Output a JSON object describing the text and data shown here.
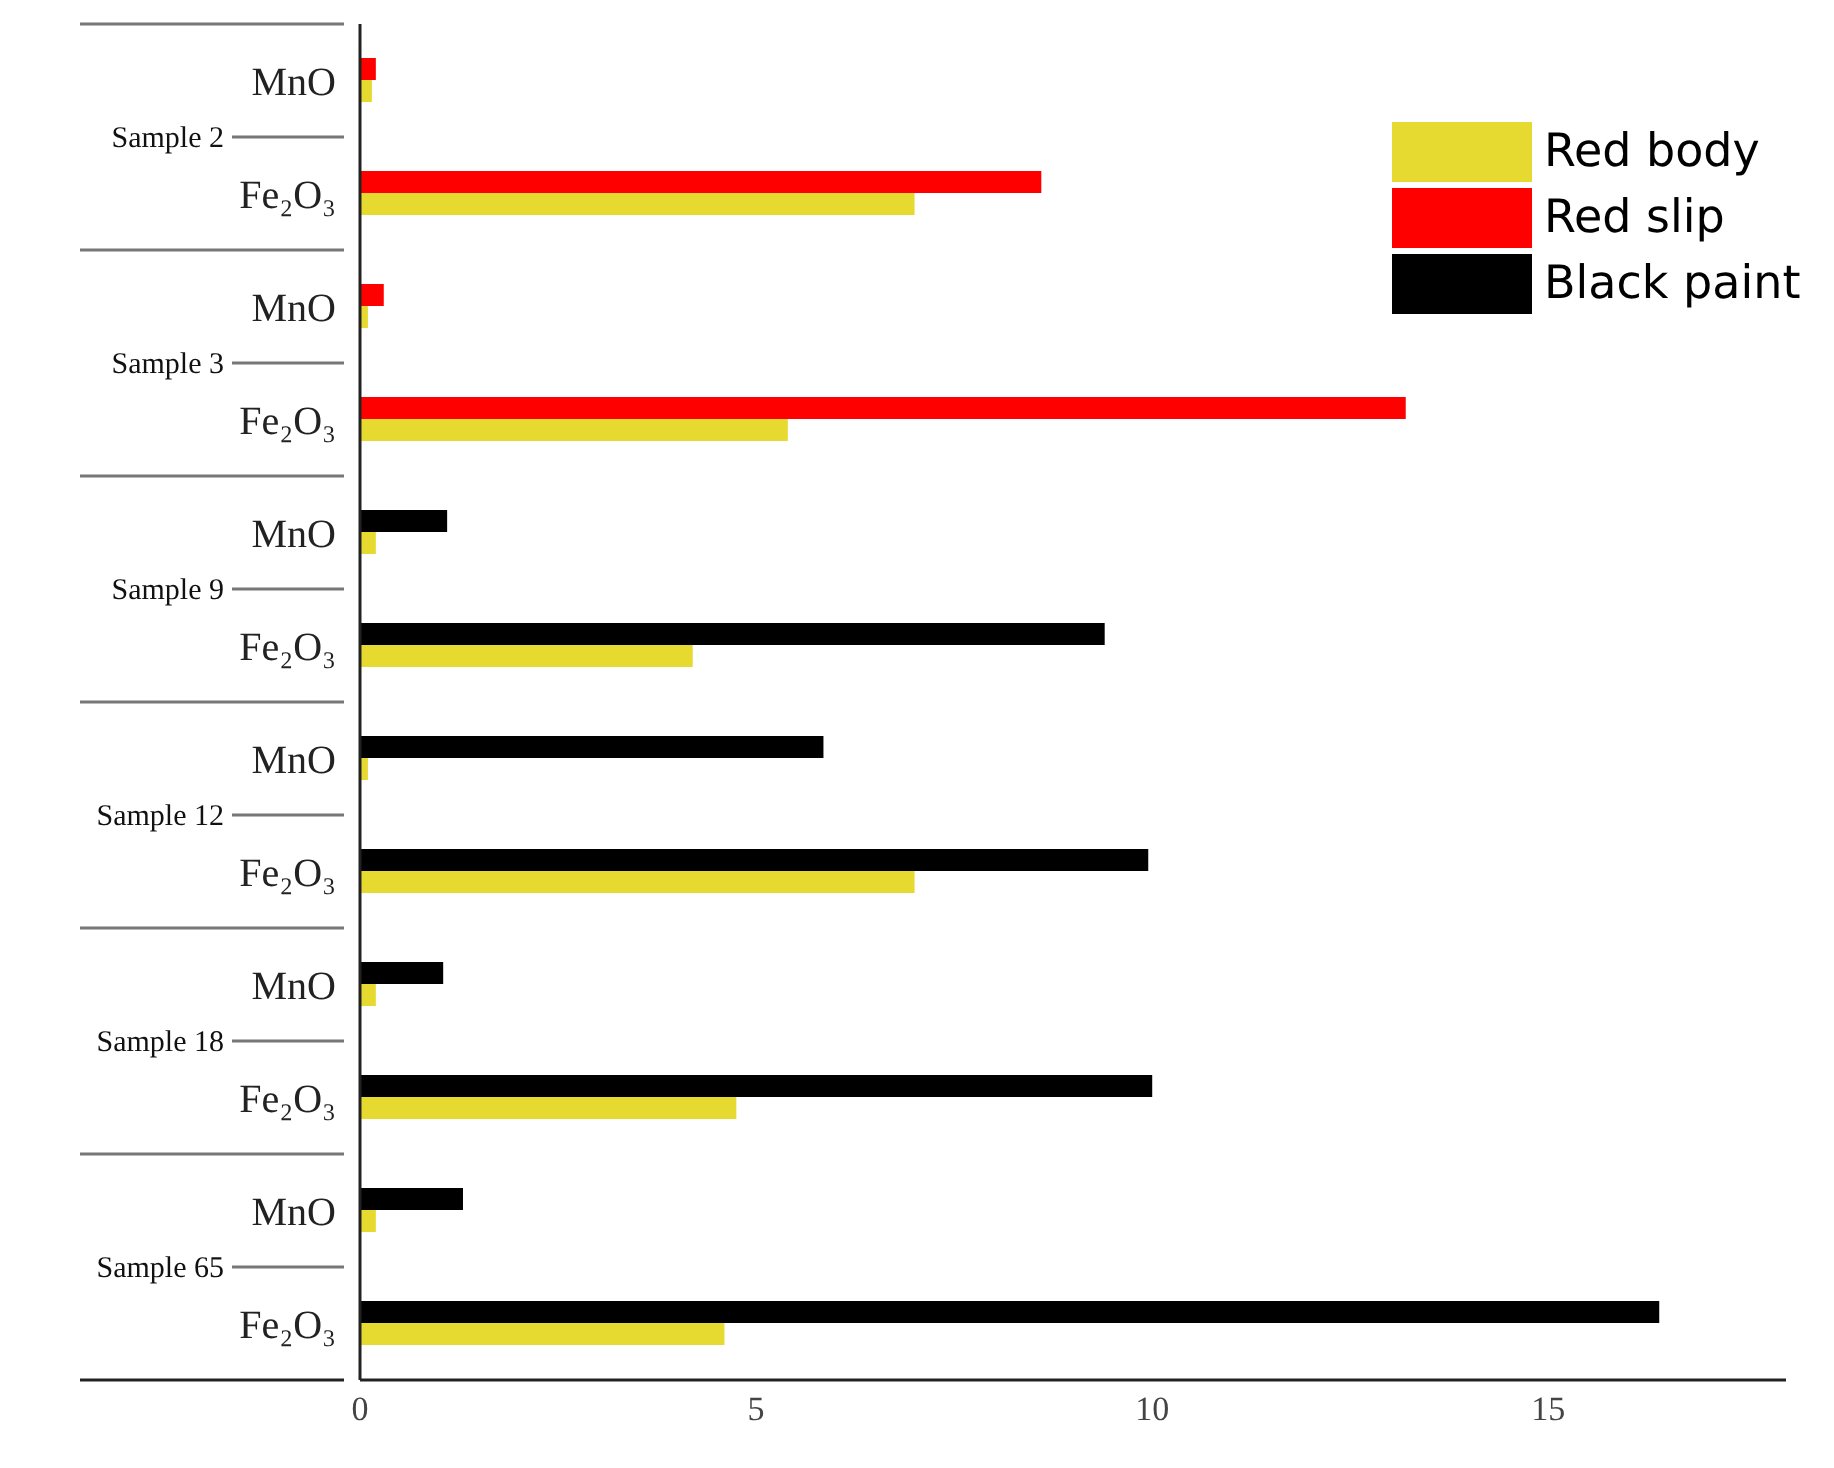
{
  "chart_data": {
    "type": "bar",
    "orientation": "horizontal",
    "categories": [
      "MnO",
      "Fe₂O₃",
      "MnO",
      "Fe₂O₃",
      "MnO",
      "Fe₂O₃",
      "MnO",
      "Fe₂O₃",
      "MnO",
      "Fe₂O₃",
      "MnO",
      "Fe₂O₃"
    ],
    "annotations": [
      "Sample 2",
      "Sample 3",
      "Sample 9",
      "Sample 12",
      "Sample 18",
      "Sample 65"
    ],
    "series": [
      {
        "name": "Red body",
        "color": "#e6d930",
        "values": [
          0.15,
          7.0,
          0.1,
          5.4,
          0.2,
          4.2,
          0.1,
          7.0,
          0.2,
          4.75,
          0.2,
          4.6
        ]
      },
      {
        "name": "Red slip",
        "color": "#ff0000",
        "values": [
          0.2,
          8.6,
          0.3,
          13.2,
          null,
          null,
          null,
          null,
          null,
          null,
          null,
          null
        ]
      },
      {
        "name": "Black paint",
        "color": "#000000",
        "values": [
          null,
          null,
          null,
          null,
          1.1,
          9.4,
          5.85,
          9.95,
          1.05,
          10.0,
          1.3,
          16.4
        ]
      }
    ],
    "xlim": [
      0,
      18
    ],
    "xticks": [
      0,
      5,
      10,
      15
    ],
    "grid": false,
    "legend": "top right"
  }
}
